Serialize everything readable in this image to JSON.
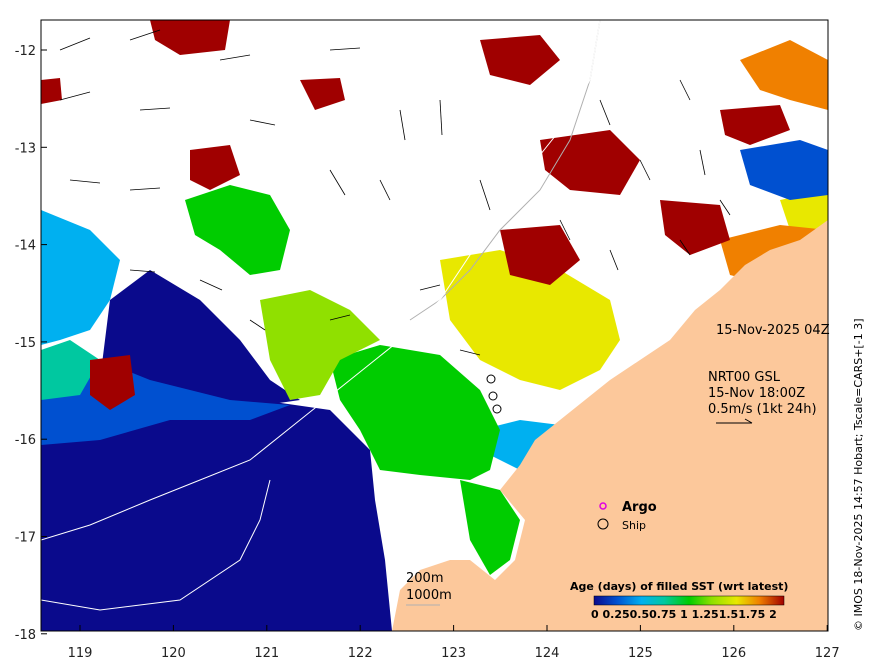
{
  "map": {
    "lon_ticks": [
      "119",
      "120",
      "121",
      "122",
      "123",
      "124",
      "125",
      "126",
      "127"
    ],
    "lat_ticks": [
      "-12",
      "-13",
      "-14",
      "-15",
      "-16",
      "-17",
      "-18"
    ],
    "timestamp": "15-Nov-2025 04Z",
    "current_source": "NRT00 GSL",
    "current_time": "15-Nov 18:00Z",
    "current_scale": "0.5m/s (1kt 24h)",
    "legend_argo": "Argo",
    "legend_ship": "Ship",
    "contour_label_200": "200m",
    "contour_label_1000": "1000m",
    "colorbar_title": "Age (days) of filled SST (wrt latest)",
    "colorbar_ticks": "0  0.250.50.75  1  1.251.51.75  2",
    "credit": "© IMOS 18-Nov-2025 14:57 Hobart; Tscale=CARS+[-1 3]",
    "colors": {
      "land": "#fcc89b",
      "age_0": "#0a0a8c",
      "age_025": "#0050d0",
      "age_05": "#00b0f0",
      "age_075": "#00c8a0",
      "age_1": "#00cc00",
      "age_125": "#90e000",
      "age_15": "#e8e800",
      "age_175": "#f08000",
      "age_2": "#a00000"
    }
  }
}
